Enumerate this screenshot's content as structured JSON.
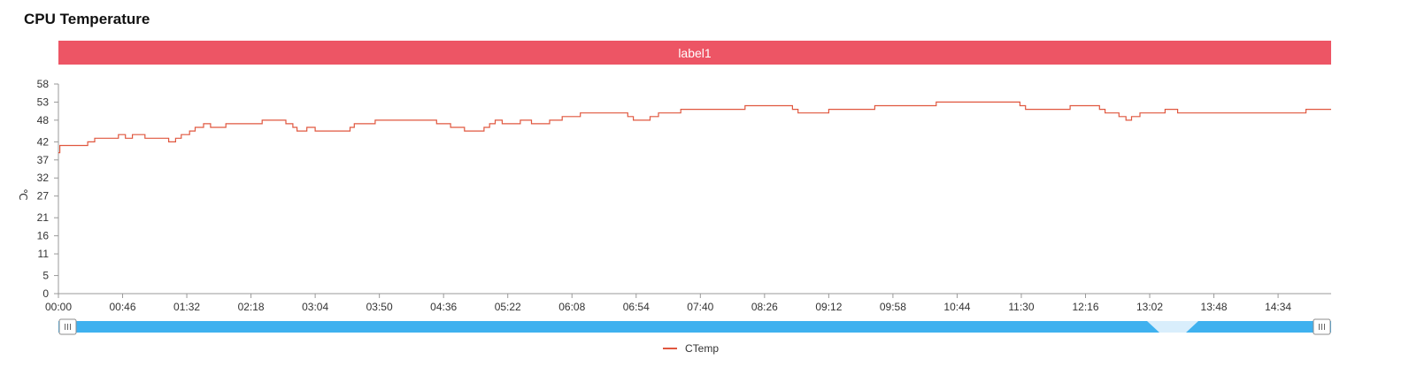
{
  "panel": {
    "title": "CPU Temperature",
    "label_banner": "label1",
    "banner_color": "#ed5565"
  },
  "colors": {
    "series_line": "#e0573f",
    "zoom_track": "#3fb1ef",
    "zoom_selected": "#d9eefc",
    "axis": "#999999"
  },
  "zoom_slider": {
    "left_handle_icon": "grip-icon",
    "right_handle_icon": "grip-icon",
    "range_start_fraction": 0.0,
    "range_end_fraction": 1.0
  },
  "chart_data": {
    "type": "line",
    "title": "",
    "ylabel": "℃",
    "xlabel": "",
    "y_ticks": [
      0,
      5,
      11,
      16,
      21,
      27,
      32,
      37,
      42,
      48,
      53,
      58
    ],
    "ylim": [
      0,
      58
    ],
    "x_ticks": [
      "00:00",
      "00:46",
      "01:32",
      "02:18",
      "03:04",
      "03:50",
      "04:36",
      "05:22",
      "06:08",
      "06:54",
      "07:40",
      "08:26",
      "09:12",
      "09:58",
      "10:44",
      "11:30",
      "12:16",
      "13:02",
      "13:48",
      "14:34"
    ],
    "x_range_minutes": [
      0,
      912
    ],
    "grid": false,
    "legend_position": "bottom-center",
    "series": [
      {
        "name": "CTemp",
        "points": [
          [
            0,
            39
          ],
          [
            1,
            41
          ],
          [
            21,
            42
          ],
          [
            26,
            43
          ],
          [
            43,
            44
          ],
          [
            48,
            43
          ],
          [
            53,
            44
          ],
          [
            62,
            43
          ],
          [
            79,
            42
          ],
          [
            84,
            43
          ],
          [
            88,
            44
          ],
          [
            94,
            45
          ],
          [
            98,
            46
          ],
          [
            104,
            47
          ],
          [
            109,
            46
          ],
          [
            120,
            47
          ],
          [
            146,
            48
          ],
          [
            163,
            47
          ],
          [
            168,
            46
          ],
          [
            171,
            45
          ],
          [
            178,
            46
          ],
          [
            184,
            45
          ],
          [
            209,
            46
          ],
          [
            212,
            47
          ],
          [
            227,
            48
          ],
          [
            271,
            47
          ],
          [
            281,
            46
          ],
          [
            291,
            45
          ],
          [
            305,
            46
          ],
          [
            309,
            47
          ],
          [
            313,
            48
          ],
          [
            318,
            47
          ],
          [
            331,
            48
          ],
          [
            339,
            47
          ],
          [
            352,
            48
          ],
          [
            361,
            49
          ],
          [
            374,
            50
          ],
          [
            408,
            49
          ],
          [
            412,
            48
          ],
          [
            424,
            49
          ],
          [
            430,
            50
          ],
          [
            446,
            51
          ],
          [
            492,
            52
          ],
          [
            526,
            51
          ],
          [
            530,
            50
          ],
          [
            552,
            51
          ],
          [
            585,
            52
          ],
          [
            629,
            53
          ],
          [
            689,
            52
          ],
          [
            693,
            51
          ],
          [
            725,
            52
          ],
          [
            746,
            51
          ],
          [
            750,
            50
          ],
          [
            760,
            49
          ],
          [
            765,
            48
          ],
          [
            769,
            49
          ],
          [
            775,
            50
          ],
          [
            793,
            51
          ],
          [
            802,
            50
          ],
          [
            894,
            51
          ],
          [
            912,
            51
          ]
        ]
      }
    ]
  }
}
